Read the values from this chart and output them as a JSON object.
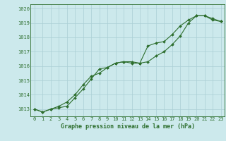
{
  "xlabel": "Graphe pression niveau de la mer (hPa)",
  "bg_color": "#cce9ec",
  "line_color": "#2d6e2d",
  "grid_color": "#aacfd4",
  "ylim": [
    1012.5,
    1020.3
  ],
  "xlim": [
    -0.5,
    23.5
  ],
  "yticks": [
    1013,
    1014,
    1015,
    1016,
    1017,
    1018,
    1019,
    1020
  ],
  "xticks": [
    0,
    1,
    2,
    3,
    4,
    5,
    6,
    7,
    8,
    9,
    10,
    11,
    12,
    13,
    14,
    15,
    16,
    17,
    18,
    19,
    20,
    21,
    22,
    23
  ],
  "series1": [
    1013.0,
    1012.8,
    1013.0,
    1013.1,
    1013.2,
    1013.8,
    1014.4,
    1015.1,
    1015.8,
    1015.9,
    1016.2,
    1016.3,
    1016.3,
    1016.2,
    1016.3,
    1016.7,
    1017.0,
    1017.5,
    1018.1,
    1019.0,
    1019.5,
    1019.5,
    1019.2,
    1019.1
  ],
  "series2": [
    1013.0,
    1012.8,
    1013.0,
    1013.2,
    1013.5,
    1014.0,
    1014.7,
    1015.3,
    1015.5,
    1015.9,
    1016.2,
    1016.3,
    1016.2,
    1016.2,
    1017.4,
    1017.6,
    1017.7,
    1018.2,
    1018.8,
    1019.2,
    1019.5,
    1019.5,
    1019.3,
    1019.1
  ]
}
